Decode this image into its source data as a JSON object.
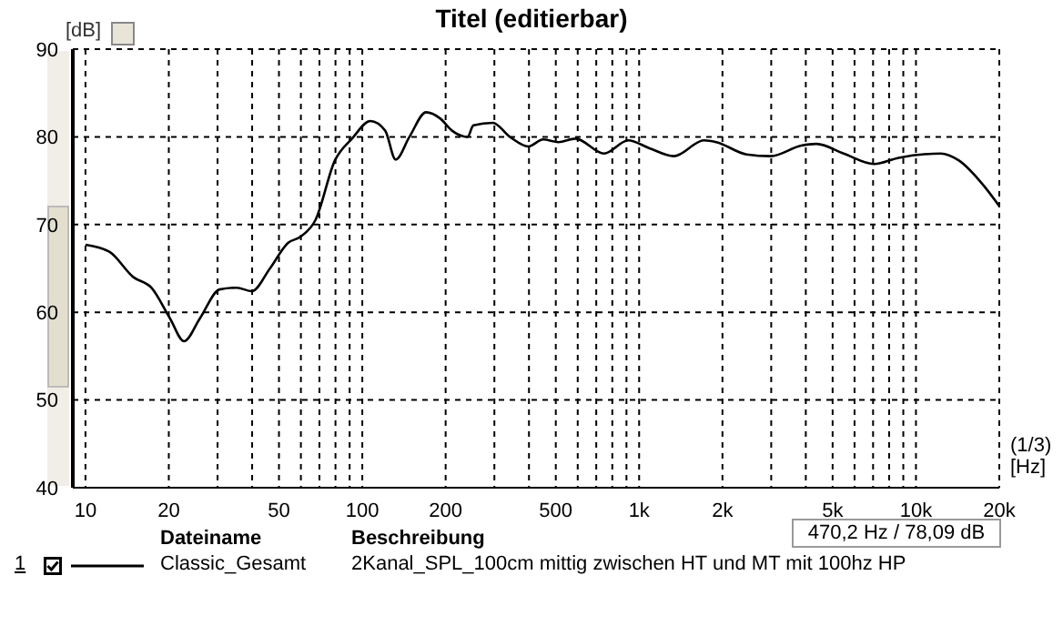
{
  "chart_data": {
    "type": "line",
    "title": "Titel (editierbar)",
    "xlabel": "[Hz]",
    "ylabel": "[dB]",
    "legend_title": "Dateiname",
    "annotations": [
      "(1/3)",
      "470,2 Hz / 78,09 dB",
      "Beschreibung",
      "2Kanal_SPL_100cm mittig zwischen HT und MT mit 100hz HP",
      "1"
    ],
    "log": "x",
    "grid": true,
    "legend": "bottom",
    "marker": "none",
    "line_style": "solid",
    "xlim": [
      9,
      20000
    ],
    "ylim": [
      40,
      90
    ],
    "yticks": [
      40,
      50,
      60,
      70,
      80,
      90
    ],
    "xticks": [
      10,
      20,
      {
        "value": 30,
        "label": null
      },
      {
        "value": 40,
        "label": null
      },
      50,
      {
        "value": 60,
        "label": null
      },
      {
        "value": 70,
        "label": null
      },
      {
        "value": 80,
        "label": null
      },
      {
        "value": 90,
        "label": null
      },
      100,
      200,
      {
        "value": 300,
        "label": null
      },
      {
        "value": 400,
        "label": null
      },
      500,
      {
        "value": 600,
        "label": null
      },
      {
        "value": 700,
        "label": null
      },
      {
        "value": 800,
        "label": null
      },
      {
        "value": 900,
        "label": null
      },
      {
        "value": 1000,
        "label": "1k"
      },
      {
        "value": 2000,
        "label": "2k"
      },
      {
        "value": 3000,
        "label": null
      },
      {
        "value": 4000,
        "label": null
      },
      {
        "value": 5000,
        "label": "5k"
      },
      {
        "value": 6000,
        "label": null
      },
      {
        "value": 7000,
        "label": null
      },
      {
        "value": 8000,
        "label": null
      },
      {
        "value": 9000,
        "label": null
      },
      {
        "value": 10000,
        "label": "10k"
      },
      {
        "value": 20000,
        "label": "20k"
      }
    ],
    "x": [
      10,
      12.2,
      14.9,
      17.3,
      20.2,
      22.7,
      25.9,
      30.5,
      35.2,
      39.9,
      46.4,
      53.9,
      59.7,
      67.7,
      79.6,
      91.8,
      107,
      121,
      132,
      148,
      170,
      191,
      211,
      240,
      252,
      296,
      341,
      398,
      450,
      511,
      589,
      747,
      913,
      1090,
      1334,
      1717,
      1898,
      2443,
      2990,
      3850,
      4370,
      5480,
      7060,
      8650,
      12300,
      14300,
      17500,
      20000
    ],
    "series": [
      {
        "name": "Classic_Gesamt",
        "color": "#000000",
        "values": [
          67.7,
          66.9,
          64.0,
          62.8,
          59.3,
          56.7,
          59.3,
          62.6,
          62.8,
          62.4,
          65.0,
          67.9,
          68.6,
          70.5,
          77.3,
          79.8,
          81.8,
          80.7,
          77.4,
          80.0,
          82.8,
          82.1,
          80.7,
          80.0,
          81.3,
          81.6,
          80.0,
          78.9,
          79.7,
          79.4,
          79.8,
          78.1,
          79.6,
          78.7,
          77.8,
          79.6,
          79.4,
          78.0,
          77.8,
          79.0,
          79.2,
          78.1,
          76.9,
          77.6,
          78.1,
          77.3,
          74.5,
          72.1
        ]
      }
    ]
  }
}
